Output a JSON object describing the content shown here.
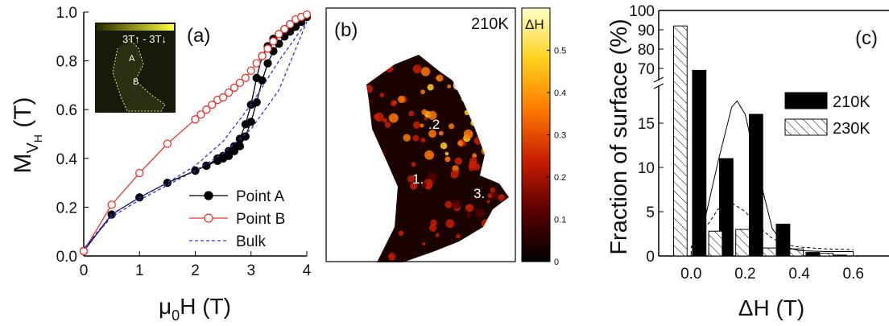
{
  "chart_data": [
    {
      "type": "line",
      "label": "(a)",
      "xlabel": [
        "μ",
        "0",
        "H (T)"
      ],
      "ylabel": [
        "M",
        "V",
        "H",
        " (T)"
      ],
      "xlim": [
        0,
        4
      ],
      "ylim": [
        0,
        1
      ],
      "xticks": [
        0,
        1,
        2,
        3,
        4
      ],
      "yticks": [
        {
          "value": 0,
          "label": "0.0"
        },
        0.2,
        0.4,
        0.6,
        0.8,
        {
          "value": 1,
          "label": "1.0"
        }
      ],
      "inset": [
        "3T↑ - 3T↓",
        "A",
        "B"
      ],
      "legend": "lower right",
      "series": [
        {
          "name": "Point A",
          "color": "#000000",
          "marker": "filled",
          "dashed": false,
          "x": [
            0,
            0.5,
            1,
            1.5,
            2,
            2.2,
            2.4,
            2.5,
            2.6,
            2.7,
            2.8,
            2.9,
            3.0,
            3.1,
            3.2,
            3.3,
            3.4,
            3.5,
            3.6,
            3.7,
            3.8,
            3.9,
            4.0,
            3.9,
            3.8,
            3.7,
            3.6,
            3.5,
            3.4,
            3.3,
            3.2,
            3.1,
            3.0,
            2.9,
            2.8,
            2.7,
            2.6,
            2.5,
            2.4,
            2.2,
            2.0
          ],
          "values": [
            0.02,
            0.17,
            0.24,
            0.3,
            0.35,
            0.37,
            0.39,
            0.4,
            0.41,
            0.43,
            0.45,
            0.49,
            0.55,
            0.63,
            0.72,
            0.79,
            0.84,
            0.87,
            0.9,
            0.92,
            0.94,
            0.96,
            0.98,
            0.97,
            0.96,
            0.95,
            0.93,
            0.91,
            0.89,
            0.86,
            0.82,
            0.73,
            0.62,
            0.54,
            0.48,
            0.45,
            0.43,
            0.41,
            0.4,
            0.37,
            0.35
          ]
        },
        {
          "name": "Point B",
          "color": "#e8352a",
          "marker": "open",
          "dashed": false,
          "x": [
            0,
            0.5,
            1,
            1.5,
            2,
            2.1,
            2.2,
            2.3,
            2.4,
            2.5,
            2.6,
            2.7,
            2.8,
            2.9,
            3.0,
            3.1,
            3.2,
            3.3,
            3.4,
            3.5,
            3.6,
            3.7,
            3.8,
            3.9,
            4.0
          ],
          "values": [
            0.02,
            0.21,
            0.34,
            0.46,
            0.56,
            0.58,
            0.6,
            0.62,
            0.64,
            0.65,
            0.67,
            0.69,
            0.71,
            0.73,
            0.76,
            0.79,
            0.82,
            0.85,
            0.88,
            0.91,
            0.93,
            0.95,
            0.97,
            0.98,
            0.99
          ]
        },
        {
          "name": "Bulk",
          "color": "#3333cc",
          "marker": "none",
          "dashed": true,
          "x": [
            0,
            0.5,
            1,
            1.5,
            2,
            2.5,
            3,
            3.5,
            4,
            3.5,
            3,
            2.5,
            2,
            1.5,
            1,
            0.5,
            0
          ],
          "values": [
            0.03,
            0.16,
            0.23,
            0.29,
            0.35,
            0.42,
            0.52,
            0.68,
            0.96,
            0.8,
            0.62,
            0.47,
            0.37,
            0.3,
            0.24,
            0.17,
            0.03
          ]
        }
      ]
    },
    {
      "type": "image",
      "label": "(b)",
      "title": "210K",
      "colorbar_label": "ΔH",
      "points": [
        ".2",
        "1.",
        "3."
      ],
      "clim": [
        0,
        0.6
      ],
      "cticks": [
        0,
        0.1,
        0.2,
        0.3,
        0.4,
        0.5
      ],
      "colormap": [
        "#000000",
        "#5a0000",
        "#c81e00",
        "#ff7a00",
        "#ffd21e",
        "#ffffc8"
      ]
    },
    {
      "type": "bar",
      "label": "(c)",
      "xlabel": "ΔH (T)",
      "ylabel": "Fraction of surface (%)",
      "xlim": [
        -0.12,
        0.72
      ],
      "ylim": [
        0,
        100
      ],
      "ybreak": [
        19,
        65
      ],
      "xticks": [
        {
          "value": 0,
          "label": "0.0"
        },
        0.2,
        0.4,
        0.6
      ],
      "yticks": [
        0,
        5,
        10,
        15,
        70,
        80,
        90,
        100
      ],
      "bar_width": 0.05,
      "series": [
        {
          "name": "210K",
          "color": "#000000",
          "hatch": false,
          "x": [
            0.03,
            0.13,
            0.24,
            0.34,
            0.45,
            0.55
          ],
          "values": [
            69,
            11,
            16,
            3.6,
            0.4,
            0.1
          ]
        },
        {
          "name": "230K",
          "color": "#ffffff",
          "hatch": true,
          "x": [
            -0.04,
            0.09,
            0.19,
            0.29,
            0.39,
            0.5
          ],
          "values": [
            92,
            2.8,
            3.0,
            0.9,
            0.8,
            0.3
          ]
        }
      ],
      "fits": [
        {
          "dashed": false,
          "x": [
            0,
            0.05,
            0.1,
            0.15,
            0.17,
            0.2,
            0.25,
            0.3,
            0.35,
            0.4,
            0.5,
            0.6
          ],
          "values": [
            0.9,
            4.0,
            10.7,
            16.8,
            17.5,
            16.0,
            9.2,
            3.1,
            1.0,
            0.6,
            0.5,
            0.5
          ]
        },
        {
          "dashed": true,
          "x": [
            0,
            0.05,
            0.1,
            0.15,
            0.2,
            0.25,
            0.3,
            0.35,
            0.4,
            0.5,
            0.6
          ],
          "values": [
            1.0,
            3.0,
            5.3,
            6.0,
            5.0,
            3.3,
            2.0,
            1.3,
            1.0,
            0.8,
            0.7
          ]
        }
      ]
    }
  ]
}
